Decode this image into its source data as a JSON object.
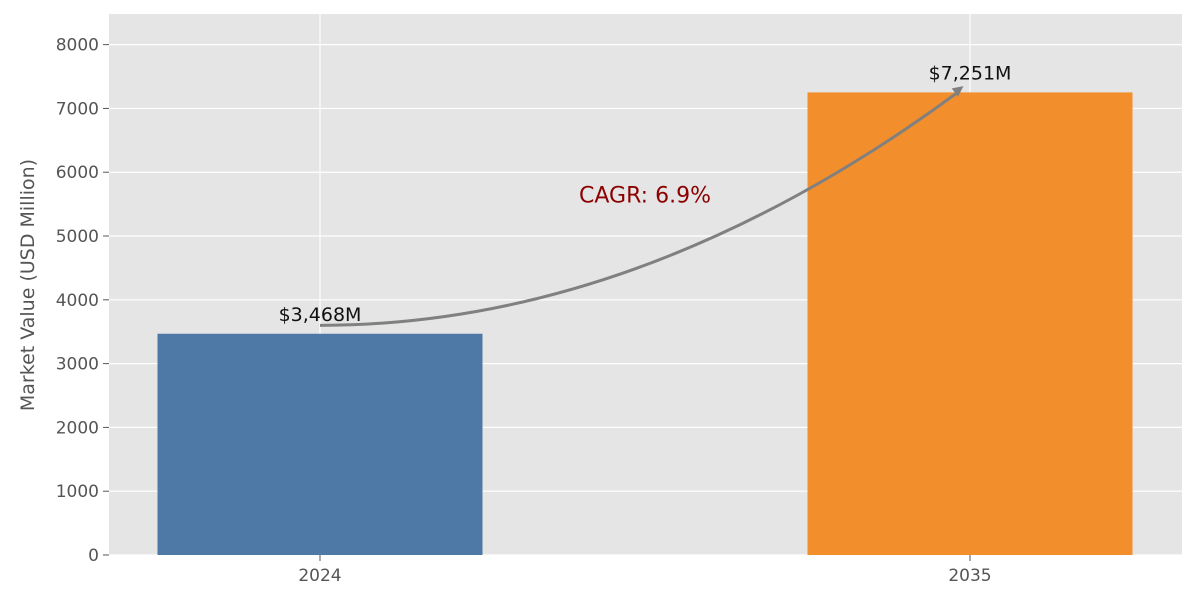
{
  "chart_data": {
    "type": "bar",
    "title": "",
    "xlabel": "",
    "ylabel": "Market Value (USD Million)",
    "categories": [
      "2024",
      "2035"
    ],
    "values": [
      3468,
      7251
    ],
    "data_labels": [
      "$3,468M",
      "$7,251M"
    ],
    "colors": [
      "#4e79a7",
      "#f28e2b"
    ],
    "ylim": [
      0,
      8480
    ],
    "yticks": [
      0,
      1000,
      2000,
      3000,
      4000,
      5000,
      6000,
      7000,
      8000
    ],
    "grid": true,
    "background": "#e5e5e5",
    "annotation": {
      "text": "CAGR: 6.9%",
      "color": "#8b0000",
      "arrow_color": "#808080",
      "arrow_from": [
        0,
        3600
      ],
      "arrow_to": [
        0.99,
        7350
      ],
      "text_at": [
        0.5,
        5650
      ]
    }
  }
}
